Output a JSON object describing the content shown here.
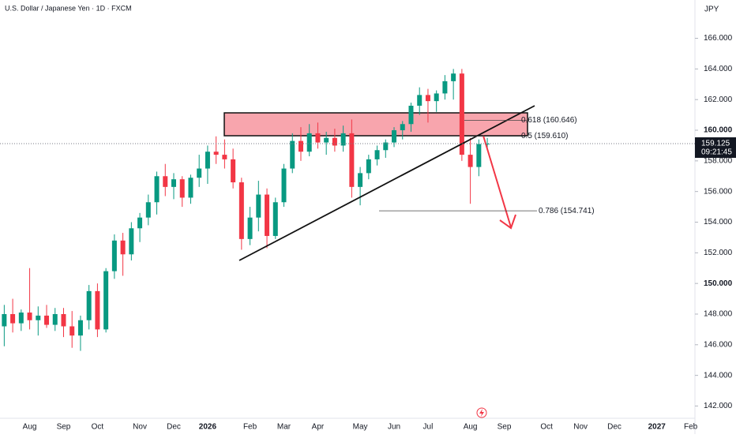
{
  "chart_data": {
    "type": "candlestick",
    "title": "U.S. Dollar / Japanese Yen · 1D · FXCM",
    "currency": "JPY",
    "categories": [
      null,
      null,
      null,
      "Aug",
      null,
      null,
      null,
      "Sep",
      null,
      null,
      null,
      "Oct",
      null,
      null,
      null,
      null,
      "Nov",
      null,
      null,
      null,
      "Dec",
      null,
      null,
      null,
      "2026",
      null,
      null,
      null,
      null,
      "Feb",
      null,
      null,
      null,
      "Mar",
      null,
      null,
      null,
      "Apr",
      null,
      null,
      null,
      null,
      "May",
      null,
      null,
      null,
      "Jun",
      null,
      null,
      null,
      "Jul",
      null,
      null,
      null,
      null,
      "Aug",
      null,
      null,
      null,
      "Sep",
      null,
      null,
      null,
      null,
      "Oct",
      null,
      null,
      null,
      "Nov",
      null,
      null,
      null,
      "Dec",
      null,
      null,
      null,
      null,
      "2027",
      null,
      null,
      null,
      "Feb"
    ],
    "open": [
      147.2,
      148.0,
      147.4,
      148.1,
      147.6,
      147.9,
      147.3,
      148.0,
      147.2,
      146.6,
      147.6,
      149.5,
      147.0,
      150.8,
      152.8,
      151.9,
      153.6,
      154.3,
      155.3,
      157.0,
      156.3,
      156.8,
      155.6,
      156.9,
      157.5,
      158.6,
      158.4,
      158.1,
      156.6,
      152.9,
      154.3,
      155.8,
      153.1,
      155.3,
      157.5,
      159.3,
      158.6,
      159.8,
      159.2,
      159.5,
      159.0,
      159.8,
      156.3,
      157.2,
      158.1,
      158.7,
      159.2,
      160.0,
      160.4,
      161.6,
      162.3,
      161.9,
      162.4,
      163.2,
      163.7,
      158.4,
      157.6,
      159.1,
      null,
      null,
      null,
      null,
      null,
      null,
      null,
      null,
      null,
      null,
      null,
      null,
      null,
      null,
      null,
      null,
      null,
      null,
      null,
      null,
      null,
      null,
      null,
      null
    ],
    "high": [
      148.6,
      149.0,
      148.3,
      151.0,
      148.5,
      148.6,
      148.4,
      148.4,
      148.2,
      147.9,
      149.9,
      150.0,
      151.0,
      153.2,
      153.3,
      154.0,
      154.6,
      155.8,
      157.3,
      157.8,
      157.2,
      157.0,
      157.1,
      158.4,
      159.0,
      159.6,
      159.4,
      158.8,
      156.9,
      155.0,
      156.7,
      156.2,
      155.6,
      157.8,
      159.8,
      160.2,
      160.4,
      160.5,
      159.9,
      160.1,
      160.3,
      160.7,
      157.6,
      158.4,
      159.0,
      159.4,
      160.2,
      160.6,
      161.8,
      162.8,
      162.7,
      162.6,
      163.6,
      164.0,
      164.0,
      159.5,
      159.4,
      159.5,
      null,
      null,
      null,
      null,
      null,
      null,
      null,
      null,
      null,
      null,
      null,
      null,
      null,
      null,
      null,
      null,
      null,
      null,
      null,
      null,
      null,
      null,
      null,
      null
    ],
    "low": [
      145.9,
      146.8,
      146.9,
      147.0,
      146.6,
      147.1,
      146.9,
      146.5,
      145.8,
      145.6,
      147.0,
      146.5,
      146.8,
      150.3,
      150.5,
      151.5,
      152.7,
      153.8,
      154.5,
      155.7,
      155.5,
      155.0,
      155.2,
      156.3,
      156.5,
      157.8,
      157.5,
      156.2,
      152.2,
      152.5,
      153.4,
      152.3,
      152.9,
      155.0,
      157.2,
      158.0,
      158.3,
      158.8,
      158.4,
      158.6,
      158.6,
      155.6,
      155.1,
      156.8,
      157.7,
      158.2,
      158.9,
      159.4,
      159.9,
      161.0,
      160.5,
      161.2,
      162.0,
      162.0,
      158.0,
      155.2,
      157.0,
      158.8,
      null,
      null,
      null,
      null,
      null,
      null,
      null,
      null,
      null,
      null,
      null,
      null,
      null,
      null,
      null,
      null,
      null,
      null,
      null,
      null,
      null,
      null,
      null,
      null
    ],
    "close": [
      148.0,
      147.4,
      148.1,
      147.6,
      147.9,
      147.3,
      148.0,
      147.2,
      146.6,
      147.6,
      149.5,
      147.0,
      150.8,
      152.8,
      151.9,
      153.6,
      154.3,
      155.3,
      157.0,
      156.3,
      156.8,
      155.6,
      156.9,
      157.5,
      158.6,
      158.4,
      158.1,
      156.6,
      152.9,
      154.3,
      155.8,
      153.1,
      155.3,
      157.5,
      159.3,
      158.6,
      159.8,
      159.2,
      159.5,
      159.0,
      159.8,
      156.3,
      157.2,
      158.1,
      158.7,
      159.2,
      160.0,
      160.4,
      161.6,
      162.3,
      161.9,
      162.4,
      163.2,
      163.7,
      158.4,
      157.6,
      159.1,
      159.125,
      null,
      null,
      null,
      null,
      null,
      null,
      null,
      null,
      null,
      null,
      null,
      null,
      null,
      null,
      null,
      null,
      null,
      null,
      null,
      null,
      null,
      null,
      null,
      null
    ],
    "up_color": "#089981",
    "down_color": "#f23645",
    "ylim": [
      141.2,
      168.5
    ],
    "yticks": [
      {
        "value": 142,
        "label": "142.000"
      },
      {
        "value": 144,
        "label": "144.000"
      },
      {
        "value": 146,
        "label": "146.000"
      },
      {
        "value": 148,
        "label": "148.000"
      },
      {
        "value": 150,
        "label": "150.000"
      },
      {
        "value": 152,
        "label": "152.000"
      },
      {
        "value": 154,
        "label": "154.000"
      },
      {
        "value": 156,
        "label": "156.000"
      },
      {
        "value": 158,
        "label": "158.000"
      },
      {
        "value": 160,
        "label": "160.000"
      },
      {
        "value": 162,
        "label": "162.000"
      },
      {
        "value": 164,
        "label": "164.000"
      },
      {
        "value": 166,
        "label": "166.000"
      }
    ],
    "current_price": {
      "value": 159.125,
      "label": "159.125"
    },
    "countdown": "09:21:45",
    "fib_levels": [
      {
        "value": 160.646,
        "label": "0.618 (160.646)"
      },
      {
        "value": 159.61,
        "label": "0.5 (159.610)"
      },
      {
        "value": 154.741,
        "label": "0.786 (154.741)"
      }
    ]
  }
}
